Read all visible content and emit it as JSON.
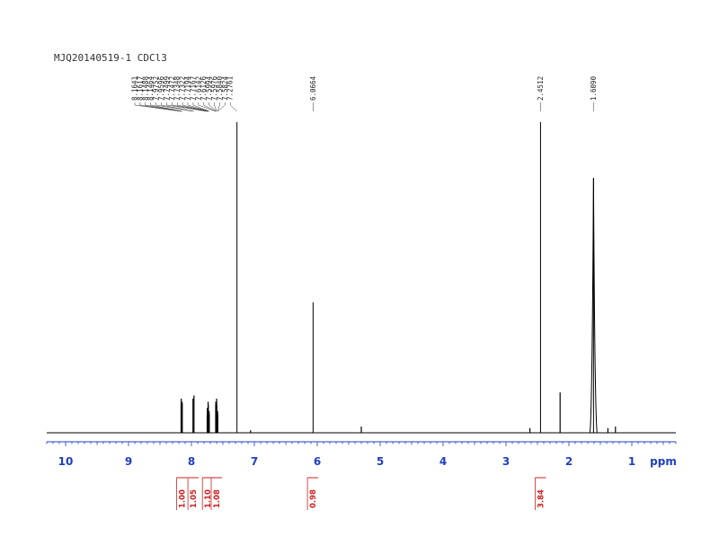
{
  "chart_data": {
    "type": "line",
    "title": "MJQ20140519-1 CDCl3",
    "xlabel": "ppm",
    "xlim": [
      10.3,
      0.3
    ],
    "x_reversed": true,
    "x_ticks": [
      10,
      9,
      8,
      7,
      6,
      5,
      4,
      3,
      2,
      1
    ],
    "colors": {
      "spectrum": "#000000",
      "axis": "#1f3fbf",
      "integral": "#cc2222"
    },
    "peaks": [
      {
        "ppm": 8.1641,
        "height": 0.095
      },
      {
        "ppm": 8.1617,
        "height": 0.11
      },
      {
        "ppm": 8.1488,
        "height": 0.1
      },
      {
        "ppm": 8.1464,
        "height": 0.095
      },
      {
        "ppm": 7.9752,
        "height": 0.11
      },
      {
        "ppm": 7.9596,
        "height": 0.12
      },
      {
        "ppm": 7.7499,
        "height": 0.06
      },
      {
        "ppm": 7.7472,
        "height": 0.08
      },
      {
        "ppm": 7.7348,
        "height": 0.1
      },
      {
        "ppm": 7.7322,
        "height": 0.09
      },
      {
        "ppm": 7.7194,
        "height": 0.07
      },
      {
        "ppm": 7.7167,
        "height": 0.06
      },
      {
        "ppm": 7.6142,
        "height": 0.09
      },
      {
        "ppm": 7.6126,
        "height": 0.1
      },
      {
        "ppm": 7.5994,
        "height": 0.11
      },
      {
        "ppm": 7.5976,
        "height": 0.09
      },
      {
        "ppm": 7.584,
        "height": 0.07
      },
      {
        "ppm": 7.5824,
        "height": 0.06
      },
      {
        "ppm": 7.2761,
        "height": 1.0
      },
      {
        "ppm": 6.0664,
        "height": 0.42
      },
      {
        "ppm": 2.4512,
        "height": 1.0
      },
      {
        "ppm": 1.609,
        "height": 0.82
      },
      {
        "ppm": 2.14,
        "height": 0.13
      },
      {
        "ppm": 5.3,
        "height": 0.02
      },
      {
        "ppm": 2.62,
        "height": 0.015
      },
      {
        "ppm": 1.38,
        "height": 0.015
      },
      {
        "ppm": 1.26,
        "height": 0.02
      },
      {
        "ppm": 7.06,
        "height": 0.008
      }
    ],
    "peak_labels": [
      "8.1641",
      "8.1617",
      "8.1488",
      "8.1464",
      "7.9752",
      "7.9596",
      "7.7499",
      "7.7472",
      "7.7348",
      "7.7322",
      "7.7194",
      "7.7167",
      "7.6142",
      "7.6126",
      "7.5994",
      "7.5976",
      "7.5840",
      "7.5824",
      "7.2761",
      "6.0664",
      "2.4512",
      "1.6090"
    ],
    "integrals": [
      {
        "value": "1.00",
        "ppm": 8.15
      },
      {
        "value": "1.05",
        "ppm": 7.97
      },
      {
        "value": "1.10",
        "ppm": 7.74
      },
      {
        "value": "1.08",
        "ppm": 7.6
      },
      {
        "value": "0.98",
        "ppm": 6.07
      },
      {
        "value": "3.84",
        "ppm": 2.45
      }
    ]
  }
}
